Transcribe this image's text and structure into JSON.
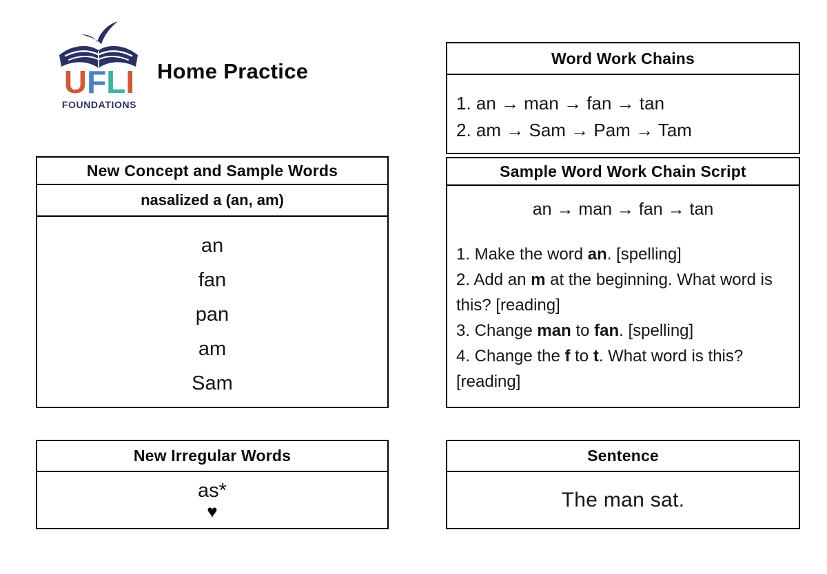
{
  "header": {
    "title": "Home Practice",
    "logo": {
      "letters": [
        {
          "char": "U",
          "color": "#ce5b3a"
        },
        {
          "char": "F",
          "color": "#4d82c0"
        },
        {
          "char": "L",
          "color": "#43b2a2"
        },
        {
          "char": "I",
          "color": "#ce5b3a"
        }
      ],
      "subtitle": "FOUNDATIONS",
      "navy": "#2a3163"
    }
  },
  "word_work_chains": {
    "header": "Word Work Chains",
    "chains": [
      "1. an → man → fan → tan",
      "2. am → Sam → Pam → Tam"
    ]
  },
  "new_concept": {
    "header": "New Concept and Sample Words",
    "concept": "nasalized a (an, am)",
    "words": [
      "an",
      "fan",
      "pan",
      "am",
      "Sam"
    ]
  },
  "sample_script": {
    "header": "Sample Word Work Chain Script",
    "chain": "an → man → fan → tan",
    "steps": [
      [
        {
          "t": "1. Make the word "
        },
        {
          "t": "an",
          "b": true
        },
        {
          "t": ". [spelling]"
        }
      ],
      [
        {
          "t": "2. Add an "
        },
        {
          "t": "m",
          "b": true
        },
        {
          "t": " at the beginning. What word is this? [reading]"
        }
      ],
      [
        {
          "t": "3. Change "
        },
        {
          "t": "man",
          "b": true
        },
        {
          "t": " to "
        },
        {
          "t": "fan",
          "b": true
        },
        {
          "t": ". [spelling]"
        }
      ],
      [
        {
          "t": "4. Change the "
        },
        {
          "t": "f",
          "b": true
        },
        {
          "t": " to "
        },
        {
          "t": "t",
          "b": true
        },
        {
          "t": ". What word is this? [reading]"
        }
      ]
    ]
  },
  "irregular_words": {
    "header": "New Irregular Words",
    "word": "as*",
    "heart": "♥"
  },
  "sentence": {
    "header": "Sentence",
    "text": "The man sat."
  }
}
